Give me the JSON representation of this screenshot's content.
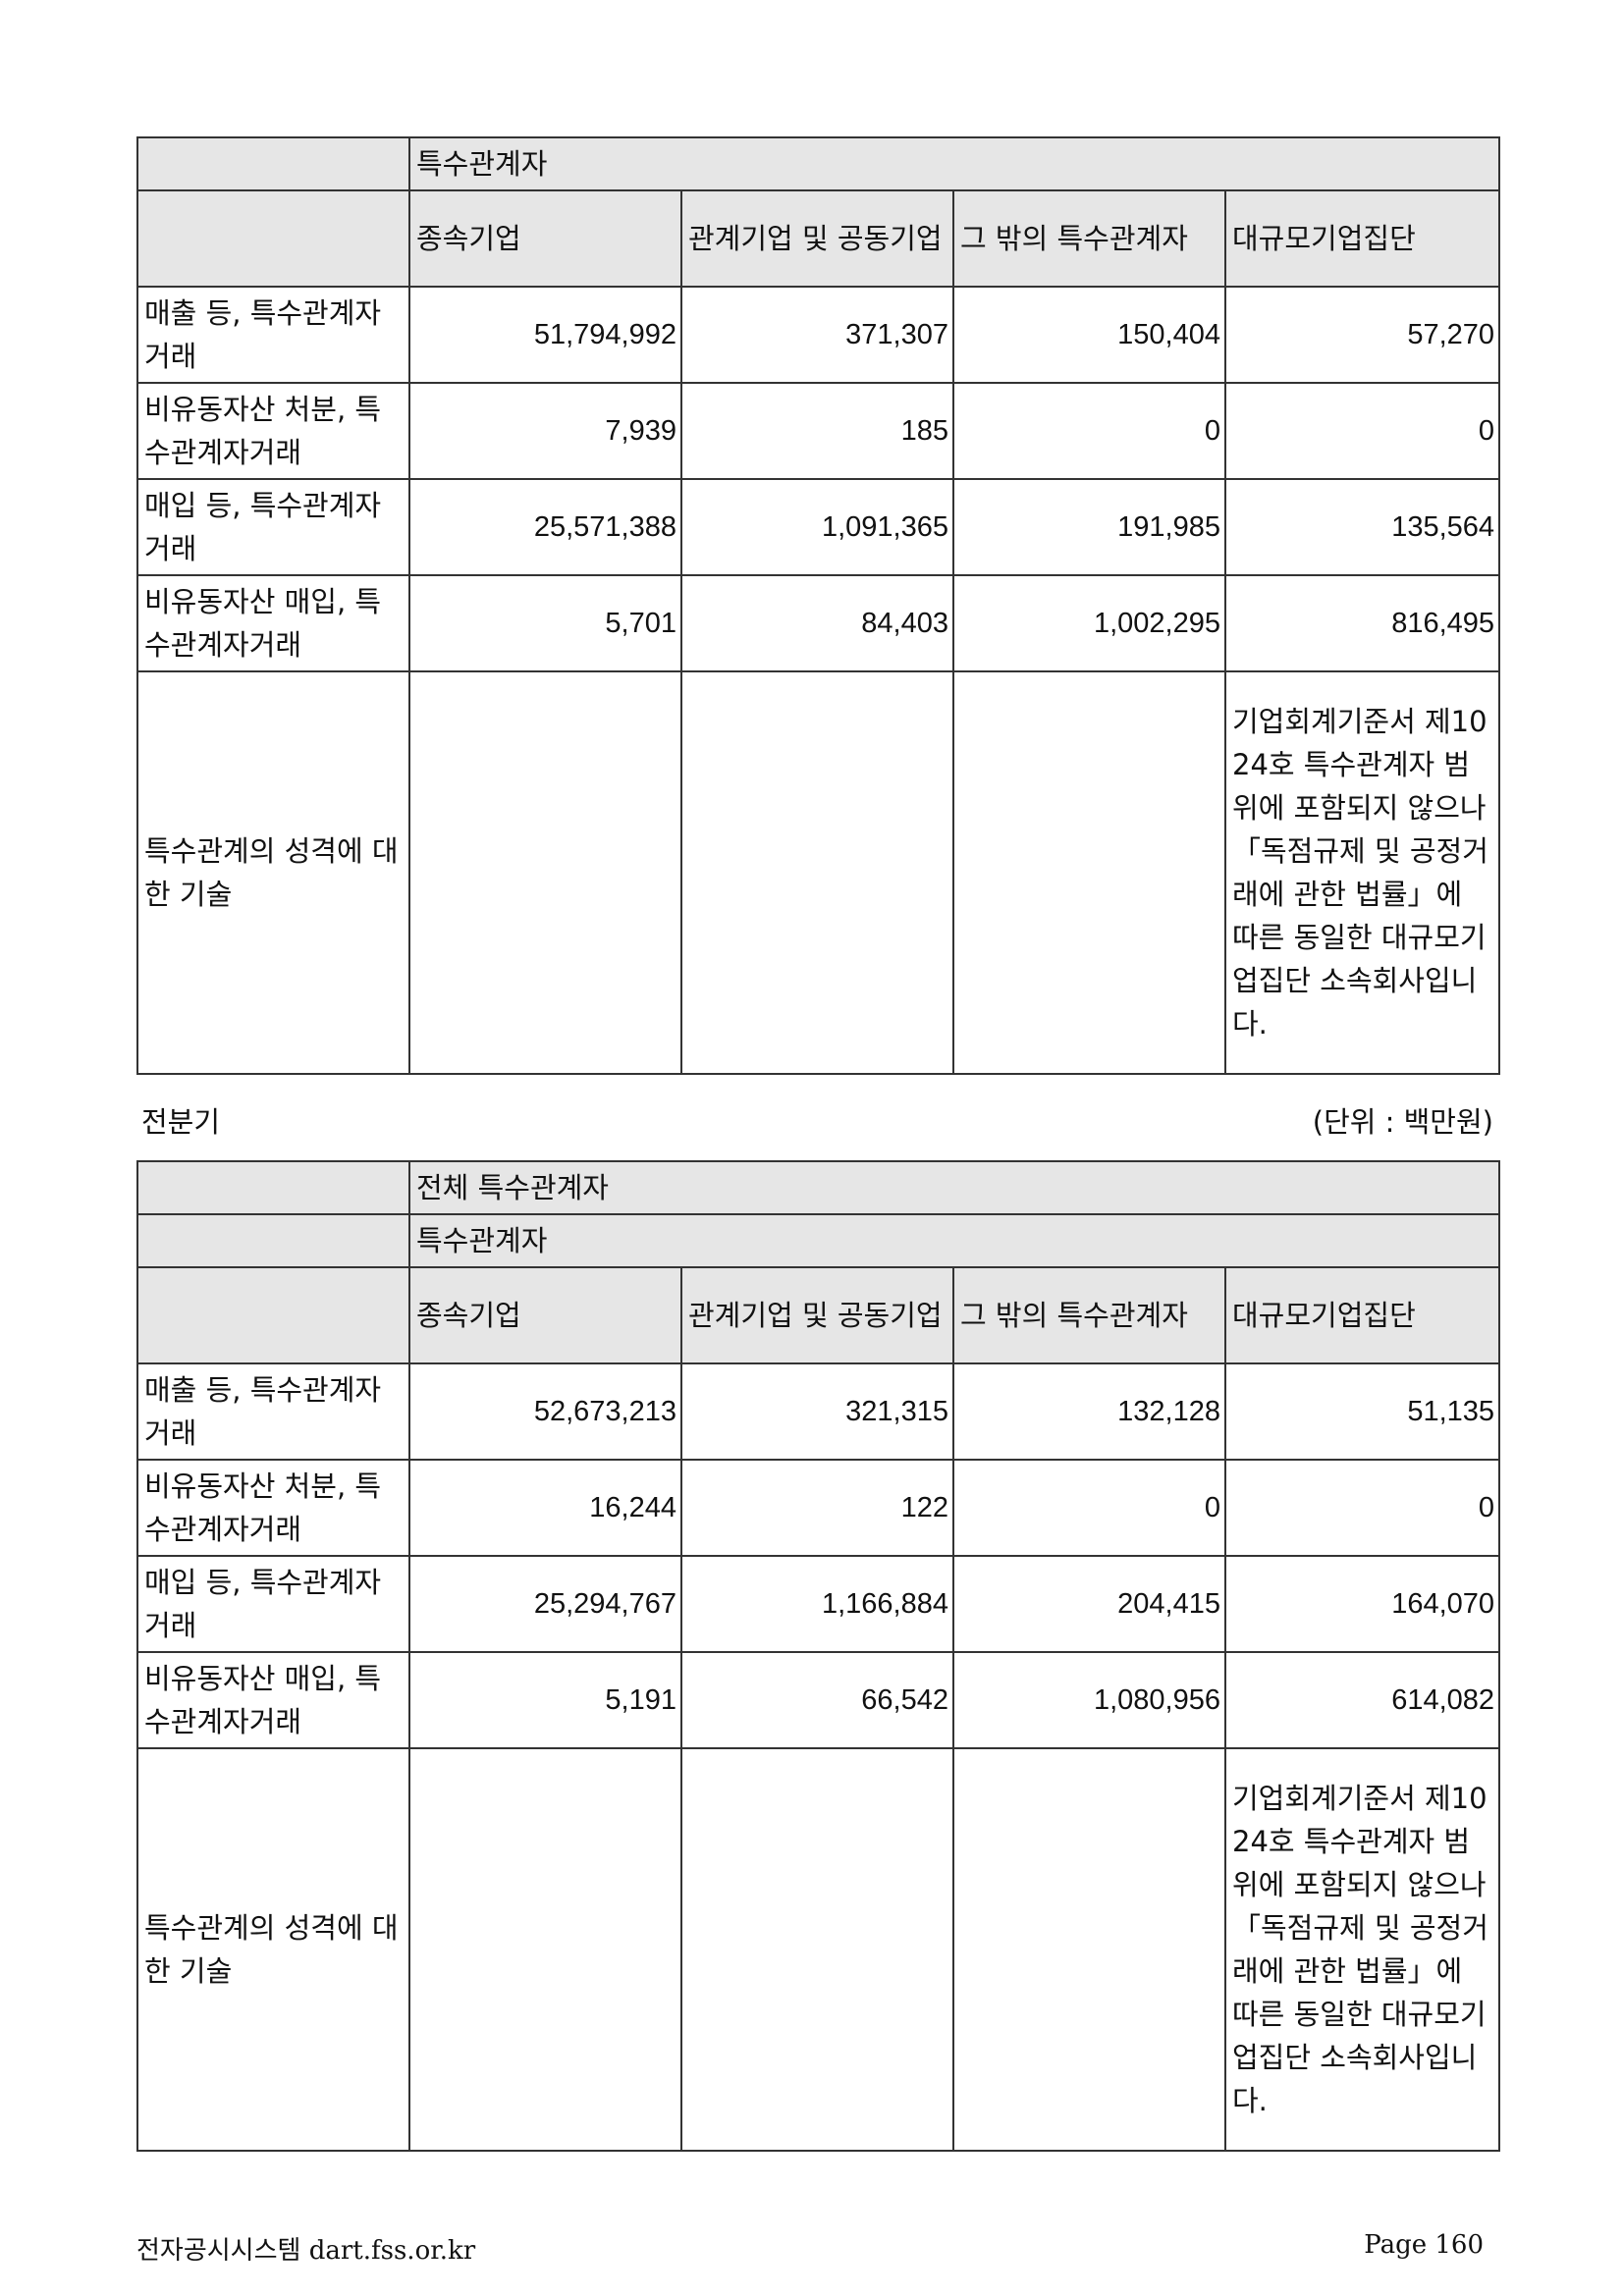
{
  "table_current": {
    "group_header": "특수관계자",
    "columns": [
      "종속기업",
      "관계기업 및 공동기업",
      "그 밖의 특수관계자",
      "대규모기업집단"
    ],
    "rows": [
      {
        "label": "매출 등, 특수관계자거래",
        "values": [
          "51,794,992",
          "371,307",
          "150,404",
          "57,270"
        ]
      },
      {
        "label": "비유동자산 처분, 특수관계자거래",
        "values": [
          "7,939",
          "185",
          "0",
          "0"
        ]
      },
      {
        "label": "매입 등, 특수관계자거래",
        "values": [
          "25,571,388",
          "1,091,365",
          "191,985",
          "135,564"
        ]
      },
      {
        "label": "비유동자산 매입, 특수관계자거래",
        "values": [
          "5,701",
          "84,403",
          "1,002,295",
          "816,495"
        ]
      }
    ],
    "description_label": "특수관계의 성격에 대한 기술",
    "description_text": "기업회계기준서 제1024호 특수관계자 범위에 포함되지 않으나 「독점규제 및 공정거래에 관한 법률」에 따른 동일한 대규모기업집단 소속회사입니다."
  },
  "period_label": "전분기",
  "unit_label": "(단위 : 백만원)",
  "table_previous": {
    "top_header": "전체 특수관계자",
    "group_header": "특수관계자",
    "columns": [
      "종속기업",
      "관계기업 및 공동기업",
      "그 밖의 특수관계자",
      "대규모기업집단"
    ],
    "rows": [
      {
        "label": "매출 등, 특수관계자거래",
        "values": [
          "52,673,213",
          "321,315",
          "132,128",
          "51,135"
        ]
      },
      {
        "label": "비유동자산 처분, 특수관계자거래",
        "values": [
          "16,244",
          "122",
          "0",
          "0"
        ]
      },
      {
        "label": "매입 등, 특수관계자거래",
        "values": [
          "25,294,767",
          "1,166,884",
          "204,415",
          "164,070"
        ]
      },
      {
        "label": "비유동자산 매입, 특수관계자거래",
        "values": [
          "5,191",
          "66,542",
          "1,080,956",
          "614,082"
        ]
      }
    ],
    "description_label": "특수관계의 성격에 대한 기술",
    "description_text": "기업회계기준서 제1024호 특수관계자 범위에 포함되지 않으나「독점규제 및 공정거래에 관한 법률」에 따른 동일한 대규모기업집단 소속회사입니다."
  },
  "footer": {
    "left": "전자공시시스템 dart.fss.or.kr",
    "right": "Page 160"
  }
}
